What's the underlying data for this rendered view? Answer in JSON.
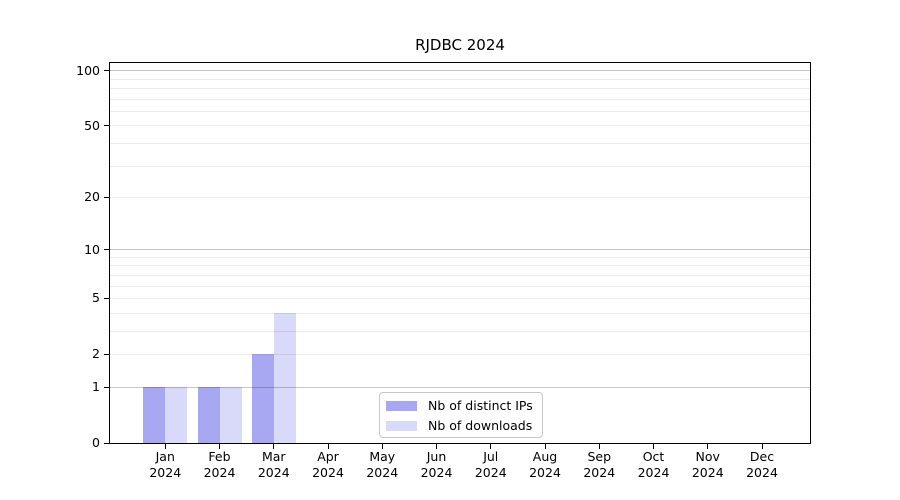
{
  "chart_data": {
    "type": "bar",
    "title": "RJDBC 2024",
    "x_categories": [
      "Jan\n2024",
      "Feb\n2024",
      "Mar\n2024",
      "Apr\n2024",
      "May\n2024",
      "Jun\n2024",
      "Jul\n2024",
      "Aug\n2024",
      "Sep\n2024",
      "Oct\n2024",
      "Nov\n2024",
      "Dec\n2024"
    ],
    "series": [
      {
        "name": "Nb of distinct IPs",
        "color": "#a8a8f2",
        "values": [
          1,
          1,
          2,
          0,
          0,
          0,
          0,
          0,
          0,
          0,
          0,
          0
        ]
      },
      {
        "name": "Nb of downloads",
        "color": "#d9d9f9",
        "values": [
          1,
          1,
          4,
          0,
          0,
          0,
          0,
          0,
          0,
          0,
          0,
          0
        ]
      }
    ],
    "y_axis": {
      "scale": "log1p",
      "lim": [
        0,
        111
      ],
      "tick_values": [
        0,
        1,
        2,
        5,
        10,
        20,
        50,
        100
      ],
      "tick_labels": [
        "0",
        "1",
        "2",
        "5",
        "10",
        "20",
        "50",
        "100"
      ],
      "minor_gridline_values": [
        2,
        3,
        4,
        5,
        6,
        7,
        8,
        9,
        20,
        30,
        40,
        50,
        60,
        70,
        80,
        90
      ],
      "major_gridline_values": [
        1,
        10,
        100
      ]
    },
    "grid": "horizontal",
    "legend_position": "inside-bottom-center"
  },
  "legend": {
    "items": [
      "Nb of distinct IPs",
      "Nb of downloads"
    ]
  },
  "colors": {
    "background": "#ffffff",
    "bar_distinct_ips": "#a8a8f2",
    "bar_downloads": "#d9d9f9",
    "grid_minor": "rgba(0,0,0,0.075)",
    "grid_major": "rgba(0,0,0,0.22)",
    "axis": "#000000",
    "text": "#000000",
    "legend_border": "#c8c8c8"
  }
}
